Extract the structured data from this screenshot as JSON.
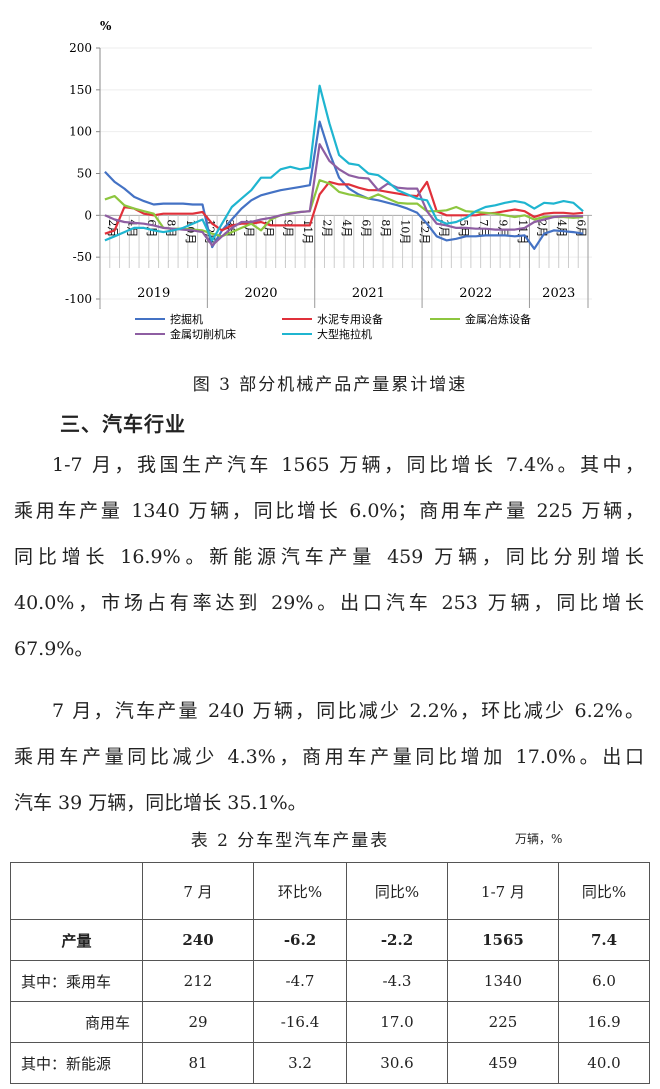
{
  "chart_data": {
    "type": "line",
    "ylabel": "%",
    "ylim": [
      -100,
      200
    ],
    "yticks": [
      "200",
      "150",
      "100",
      "50",
      "0",
      "-50",
      "-100"
    ],
    "grid": "horizontal",
    "legend_position": "bottom",
    "years": [
      "2019",
      "2020",
      "2021",
      "2022",
      "2023"
    ],
    "month_labels": [
      "2月",
      "3月",
      "4月",
      "5月",
      "6月",
      "7月",
      "8月",
      "9月",
      "10月",
      "11月",
      "12月",
      "2月",
      "3月",
      "4月",
      "5月",
      "6月",
      "7月",
      "8月",
      "9月",
      "10月",
      "11月",
      "12月",
      "2月",
      "3月",
      "4月",
      "5月",
      "6月",
      "7月",
      "8月",
      "9月",
      "10月",
      "11月",
      "12月",
      "2月",
      "3月",
      "4月",
      "5月",
      "6月",
      "7月",
      "8月",
      "9月",
      "10月",
      "11月",
      "12月",
      "2月",
      "3月",
      "4月",
      "5月",
      "6月",
      "7月"
    ],
    "series": [
      {
        "name": "挖掘机",
        "color": "#4472c4",
        "values": [
          52,
          40,
          32,
          22,
          17,
          13,
          14,
          14,
          14,
          13,
          13,
          -38,
          -18,
          -5,
          8,
          18,
          24,
          27,
          30,
          32,
          34,
          36,
          112,
          75,
          45,
          32,
          25,
          20,
          18,
          15,
          12,
          8,
          3,
          -10,
          -25,
          -30,
          -28,
          -25,
          -25,
          -24,
          -24,
          -24,
          -25,
          -24,
          -40,
          -22,
          -18,
          -19,
          -20,
          -22
        ]
      },
      {
        "name": "水泥专用设备",
        "color": "#e0303a",
        "values": [
          -22,
          -18,
          10,
          8,
          2,
          0,
          2,
          2,
          2,
          2,
          4,
          -10,
          -18,
          -12,
          -10,
          -10,
          -8,
          -12,
          -12,
          -12,
          -12,
          -12,
          25,
          40,
          37,
          37,
          33,
          30,
          30,
          28,
          26,
          24,
          23,
          40,
          5,
          0,
          0,
          0,
          0,
          2,
          3,
          5,
          7,
          5,
          -2,
          2,
          3,
          3,
          2,
          3
        ]
      },
      {
        "name": "金属冶炼设备",
        "color": "#8dc63f",
        "values": [
          19,
          23,
          12,
          8,
          5,
          2,
          -15,
          -16,
          -16,
          -17,
          -18,
          -22,
          -25,
          -20,
          -15,
          -10,
          -18,
          -5,
          0,
          3,
          4,
          5,
          42,
          38,
          28,
          25,
          23,
          20,
          25,
          20,
          15,
          14,
          14,
          5,
          5,
          6,
          10,
          5,
          4,
          3,
          2,
          0,
          -2,
          0,
          -5,
          -2,
          -2,
          -2,
          -3,
          -2
        ]
      },
      {
        "name": "金属切削机床",
        "color": "#8e5ea2",
        "values": [
          0,
          -5,
          -8,
          -9,
          -10,
          -12,
          -15,
          -16,
          -17,
          -18,
          -20,
          -36,
          -25,
          -15,
          -8,
          -8,
          -5,
          -3,
          0,
          2,
          4,
          5,
          85,
          65,
          55,
          48,
          45,
          44,
          30,
          38,
          33,
          32,
          32,
          5,
          -10,
          -12,
          -15,
          -15,
          -16,
          -16,
          -17,
          -17,
          -17,
          -15,
          -8,
          -5,
          -2,
          -1,
          -1,
          -1
        ]
      },
      {
        "name": "大型拖拉机",
        "color": "#1fb5d0",
        "values": [
          -30,
          -25,
          -20,
          -15,
          -15,
          -18,
          -20,
          -18,
          -15,
          -10,
          -5,
          -30,
          -10,
          10,
          20,
          30,
          45,
          45,
          55,
          58,
          55,
          57,
          155,
          110,
          72,
          62,
          60,
          50,
          48,
          40,
          30,
          25,
          20,
          18,
          -5,
          -10,
          -8,
          -3,
          5,
          10,
          12,
          15,
          17,
          15,
          8,
          15,
          14,
          17,
          15,
          5
        ]
      }
    ]
  },
  "figure_caption": "图 3 部分机械产品产量累计增速",
  "section_heading": "三、汽车行业",
  "paragraphs": [
    [
      "1-7 月，我国生产汽车 1565 万辆，同比增长 7.4%。其中，",
      "乘用车产量 1340 万辆，同比增长 6.0%；商用车产量 225 万辆，",
      "同比增长 16.9%。新能源汽车产量 459 万辆，同比分别增长",
      "40.0%，市场占有率达到 29%。出口汽车 253 万辆，同比增长",
      "67.9%。"
    ],
    [
      "7 月，汽车产量 240 万辆，同比减少 2.2%，环比减少 6.2%。",
      "乘用车产量同比减少 4.3%，商用车产量同比增加 17.0%。出口",
      "汽车 39 万辆，同比增长 35.1%。"
    ]
  ],
  "table": {
    "caption": "表 2 分车型汽车产量表",
    "unit": "万辆，%",
    "headers": [
      "",
      "7 月",
      "环比%",
      "同比%",
      "1-7 月",
      "同比%"
    ],
    "rows": [
      [
        "产量",
        "240",
        "-6.2",
        "-2.2",
        "1565",
        "7.4"
      ],
      [
        "其中：乘用车",
        "212",
        "-4.7",
        "-4.3",
        "1340",
        "6.0"
      ],
      [
        "商用车",
        "29",
        "-16.4",
        "17.0",
        "225",
        "16.9"
      ],
      [
        "其中：新能源",
        "81",
        "3.2",
        "30.6",
        "459",
        "40.0"
      ]
    ]
  }
}
